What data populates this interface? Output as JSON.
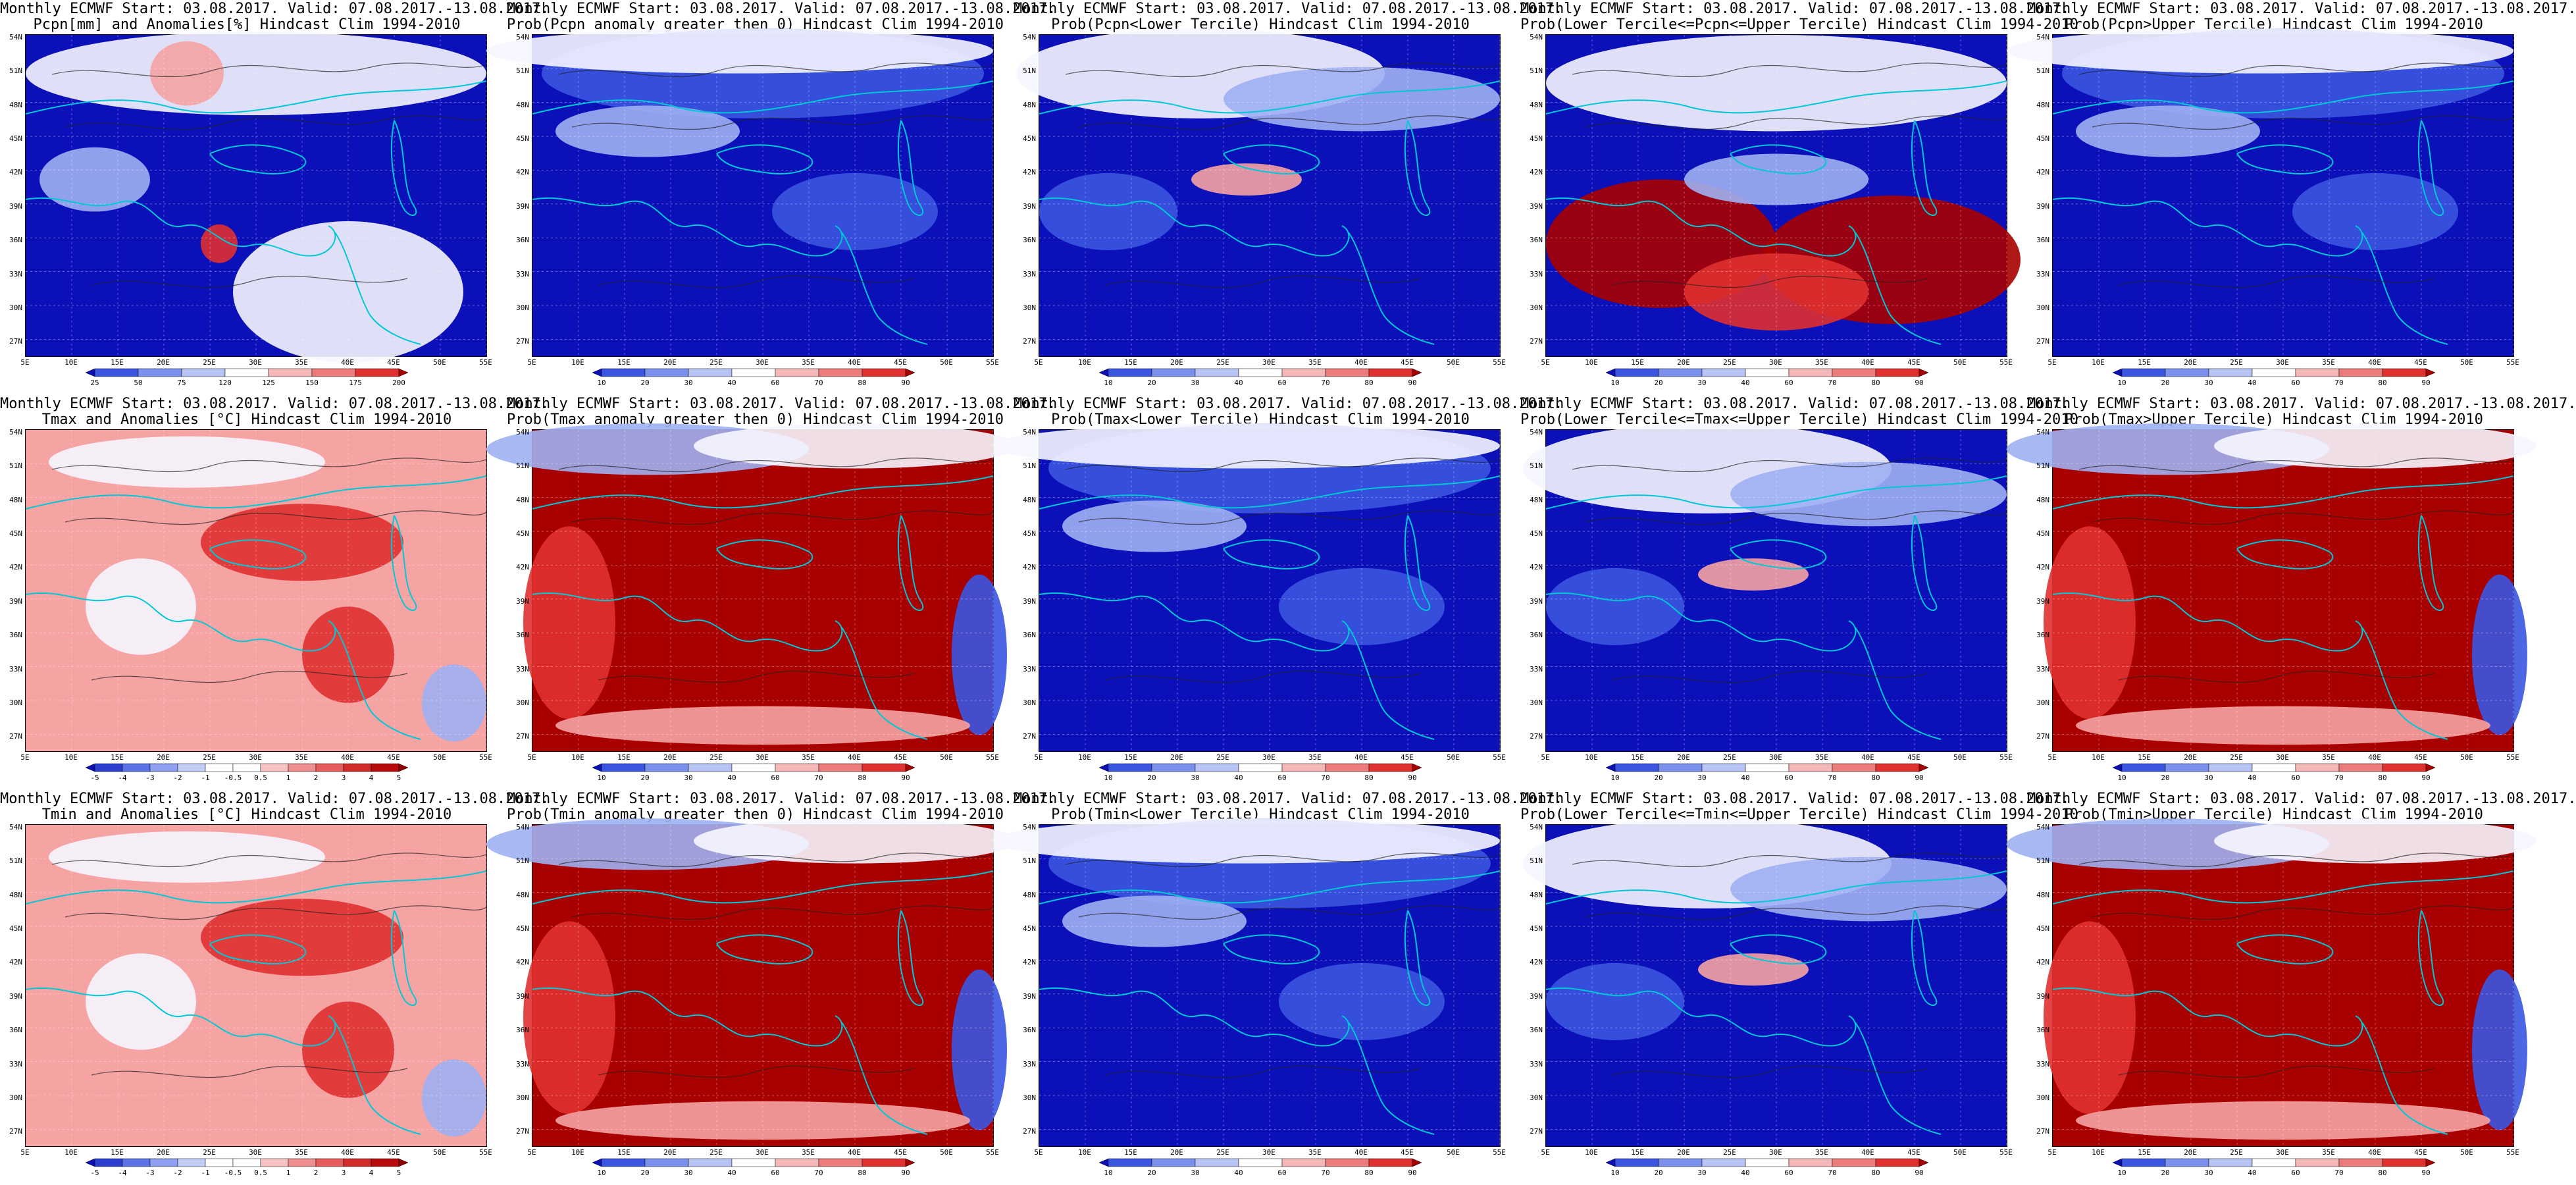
{
  "colors": {
    "dark_blue": "#0b10b8",
    "mid_blue": "#3a55e0",
    "light_blue": "#9fb0f2",
    "white": "#f6f6ff",
    "light_red": "#f5a3a3",
    "mid_red": "#e03030",
    "dark_red": "#a80000",
    "coast": "#00c8d6",
    "contour": "#222222"
  },
  "lat_labels": [
    "54N",
    "51N",
    "48N",
    "45N",
    "42N",
    "39N",
    "36N",
    "33N",
    "30N",
    "27N"
  ],
  "lon_labels": [
    "5E",
    "10E",
    "15E",
    "20E",
    "25E",
    "30E",
    "35E",
    "40E",
    "45E",
    "50E",
    "55E"
  ],
  "colorbars": {
    "anom_pcpn": [
      "25",
      "50",
      "75",
      "120",
      "125",
      "150",
      "175",
      "200"
    ],
    "prob": [
      "10",
      "20",
      "30",
      "40",
      "60",
      "70",
      "80",
      "90"
    ],
    "anom_temp": [
      "-5",
      "-4",
      "-3",
      "-2",
      "-1",
      "-0.5",
      "0.5",
      "1",
      "2",
      "3",
      "4",
      "5"
    ]
  },
  "panels": [
    {
      "title1": "Monthly ECMWF Start: 03.08.2017. Valid: 07.08.2017.-13.08.2017.",
      "title2": "Pcpn[mm] and Anomalies[%] Hindcast Clim 1994-2010",
      "scheme": "pcpn_anom",
      "cbar": "anom_pcpn"
    },
    {
      "title1": "Monthly ECMWF Start: 03.08.2017. Valid: 07.08.2017.-13.08.2017.",
      "title2": "Prob(Pcpn anomaly greater then 0) Hindcast Clim 1994-2010",
      "scheme": "blue",
      "cbar": "prob"
    },
    {
      "title1": "Monthly ECMWF Start: 03.08.2017. Valid: 07.08.2017.-13.08.2017.",
      "title2": "Prob(Pcpn<Lower Tercile) Hindcast Clim 1994-2010",
      "scheme": "blue_white",
      "cbar": "prob"
    },
    {
      "title1": "Monthly ECMWF Start: 03.08.2017. Valid: 07.08.2017.-13.08.2017.",
      "title2": "Prob(Lower Tercile<=Pcpn<=Upper Tercile) Hindcast Clim 1994-2010",
      "scheme": "mixed_red_south",
      "cbar": "prob"
    },
    {
      "title1": "Monthly ECMWF Start: 03.08.2017. Valid: 07.08.2017.-13.08.2017.",
      "title2": "Prob(Pcpn>Upper Tercile) Hindcast Clim 1994-2010",
      "scheme": "blue",
      "cbar": "prob"
    },
    {
      "title1": "Monthly ECMWF Start: 03.08.2017. Valid: 07.08.2017.-13.08.2017.",
      "title2": "Tmax and Anomalies [°C] Hindcast Clim 1994-2010",
      "scheme": "temp_anom",
      "cbar": "anom_temp"
    },
    {
      "title1": "Monthly ECMWF Start: 03.08.2017. Valid: 07.08.2017.-13.08.2017.",
      "title2": "Prob(Tmax anomaly greater then 0) Hindcast Clim 1994-2010",
      "scheme": "red",
      "cbar": "prob"
    },
    {
      "title1": "Monthly ECMWF Start: 03.08.2017. Valid: 07.08.2017.-13.08.2017.",
      "title2": "Prob(Tmax<Lower Tercile) Hindcast Clim 1994-2010",
      "scheme": "blue",
      "cbar": "prob"
    },
    {
      "title1": "Monthly ECMWF Start: 03.08.2017. Valid: 07.08.2017.-13.08.2017.",
      "title2": "Prob(Lower Tercile<=Tmax<=Upper Tercile) Hindcast Clim 1994-2010",
      "scheme": "blue_white",
      "cbar": "prob"
    },
    {
      "title1": "Monthly ECMWF Start: 03.08.2017. Valid: 07.08.2017.-13.08.2017.",
      "title2": "Prob(Tmax>Upper Tercile) Hindcast Clim 1994-2010",
      "scheme": "red",
      "cbar": "prob"
    },
    {
      "title1": "Monthly ECMWF Start: 03.08.2017. Valid: 07.08.2017.-13.08.2017.",
      "title2": "Tmin and Anomalies [°C] Hindcast Clim 1994-2010",
      "scheme": "temp_anom",
      "cbar": "anom_temp"
    },
    {
      "title1": "Monthly ECMWF Start: 03.08.2017. Valid: 07.08.2017.-13.08.2017.",
      "title2": "Prob(Tmin anomaly greater then 0) Hindcast Clim 1994-2010",
      "scheme": "red",
      "cbar": "prob"
    },
    {
      "title1": "Monthly ECMWF Start: 03.08.2017. Valid: 07.08.2017.-13.08.2017.",
      "title2": "Prob(Tmin<Lower Tercile) Hindcast Clim 1994-2010",
      "scheme": "blue",
      "cbar": "prob"
    },
    {
      "title1": "Monthly ECMWF Start: 03.08.2017. Valid: 07.08.2017.-13.08.2017.",
      "title2": "Prob(Lower Tercile<=Tmin<=Upper Tercile) Hindcast Clim 1994-2010",
      "scheme": "blue_white",
      "cbar": "prob"
    },
    {
      "title1": "Monthly ECMWF Start: 03.08.2017. Valid: 07.08.2017.-13.08.2017.",
      "title2": "Prob(Tmin>Upper Tercile) Hindcast Clim 1994-2010",
      "scheme": "red",
      "cbar": "prob"
    }
  ]
}
